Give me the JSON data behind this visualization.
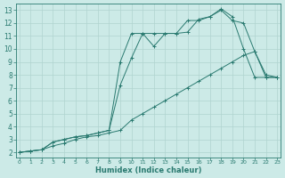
{
  "title": "",
  "xlabel": "Humidex (Indice chaleur)",
  "ylabel": "",
  "bg_color": "#cceae7",
  "grid_color": "#b0d4d0",
  "line_color": "#2a7a70",
  "x_ticks": [
    0,
    1,
    2,
    3,
    4,
    5,
    6,
    7,
    8,
    9,
    10,
    11,
    12,
    13,
    14,
    15,
    16,
    17,
    18,
    19,
    20,
    21,
    22,
    23
  ],
  "y_ticks": [
    2,
    3,
    4,
    5,
    6,
    7,
    8,
    9,
    10,
    11,
    12,
    13
  ],
  "xlim": [
    -0.3,
    23.3
  ],
  "ylim": [
    1.6,
    13.5
  ],
  "series": [
    {
      "x": [
        0,
        1,
        2,
        3,
        4,
        5,
        6,
        7,
        8,
        9,
        10,
        11,
        12,
        13,
        14,
        15,
        16,
        17,
        18,
        19,
        20,
        21,
        22,
        23
      ],
      "y": [
        2,
        2.1,
        2.2,
        2.5,
        2.7,
        3.0,
        3.2,
        3.3,
        3.5,
        3.7,
        4.5,
        5.0,
        5.5,
        6.0,
        6.5,
        7.0,
        7.5,
        8.0,
        8.5,
        9.0,
        9.5,
        9.8,
        8.0,
        7.8
      ]
    },
    {
      "x": [
        0,
        1,
        2,
        3,
        4,
        5,
        6,
        7,
        8,
        9,
        10,
        11,
        12,
        13,
        14,
        15,
        16,
        17,
        18,
        19,
        20,
        21,
        22,
        23
      ],
      "y": [
        2,
        2.1,
        2.2,
        2.8,
        3.0,
        3.2,
        3.3,
        3.5,
        3.7,
        9.0,
        11.2,
        11.2,
        10.2,
        11.2,
        11.2,
        12.2,
        12.2,
        12.5,
        13.1,
        12.5,
        10.0,
        7.8,
        7.8,
        7.8
      ]
    },
    {
      "x": [
        0,
        1,
        2,
        3,
        4,
        5,
        6,
        7,
        8,
        9,
        10,
        11,
        12,
        13,
        14,
        15,
        16,
        17,
        18,
        19,
        20,
        21,
        22,
        23
      ],
      "y": [
        2,
        2.1,
        2.2,
        2.8,
        3.0,
        3.2,
        3.3,
        3.5,
        3.7,
        7.2,
        9.3,
        11.2,
        11.2,
        11.2,
        11.2,
        11.3,
        12.3,
        12.5,
        13.0,
        12.2,
        12.0,
        9.8,
        7.8,
        7.8
      ]
    }
  ]
}
